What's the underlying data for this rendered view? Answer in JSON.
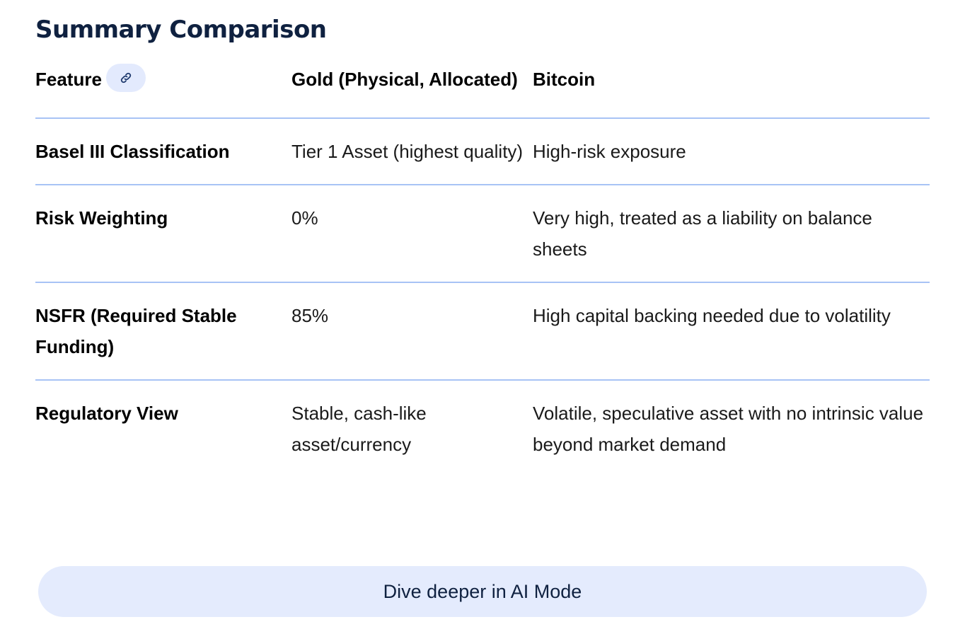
{
  "heading": "Summary Comparison",
  "table": {
    "headers": [
      "Feature",
      "Gold (Physical, Allocated)",
      "Bitcoin"
    ],
    "rows": [
      {
        "feature": "Basel III Classification",
        "gold": "Tier 1 Asset (highest quality)",
        "bitcoin": "High-risk exposure"
      },
      {
        "feature": "Risk Weighting",
        "gold": "0%",
        "bitcoin": "Very high, treated as a liability on balance sheets"
      },
      {
        "feature": "NSFR (Required Stable Funding)",
        "gold": "85%",
        "bitcoin": "High capital backing needed due to volatility"
      },
      {
        "feature": "Regulatory View",
        "gold": "Stable, cash-like asset/currency",
        "bitcoin": "Volatile, speculative asset with no intrinsic value beyond market demand"
      }
    ]
  },
  "link_icon": "link-icon",
  "dive_button_label": "Dive deeper in AI Mode",
  "colors": {
    "heading": "#0f2140",
    "divider": "#a8c3f5",
    "chip_bg": "#e3eafd",
    "button_bg": "#e4ebfd"
  }
}
